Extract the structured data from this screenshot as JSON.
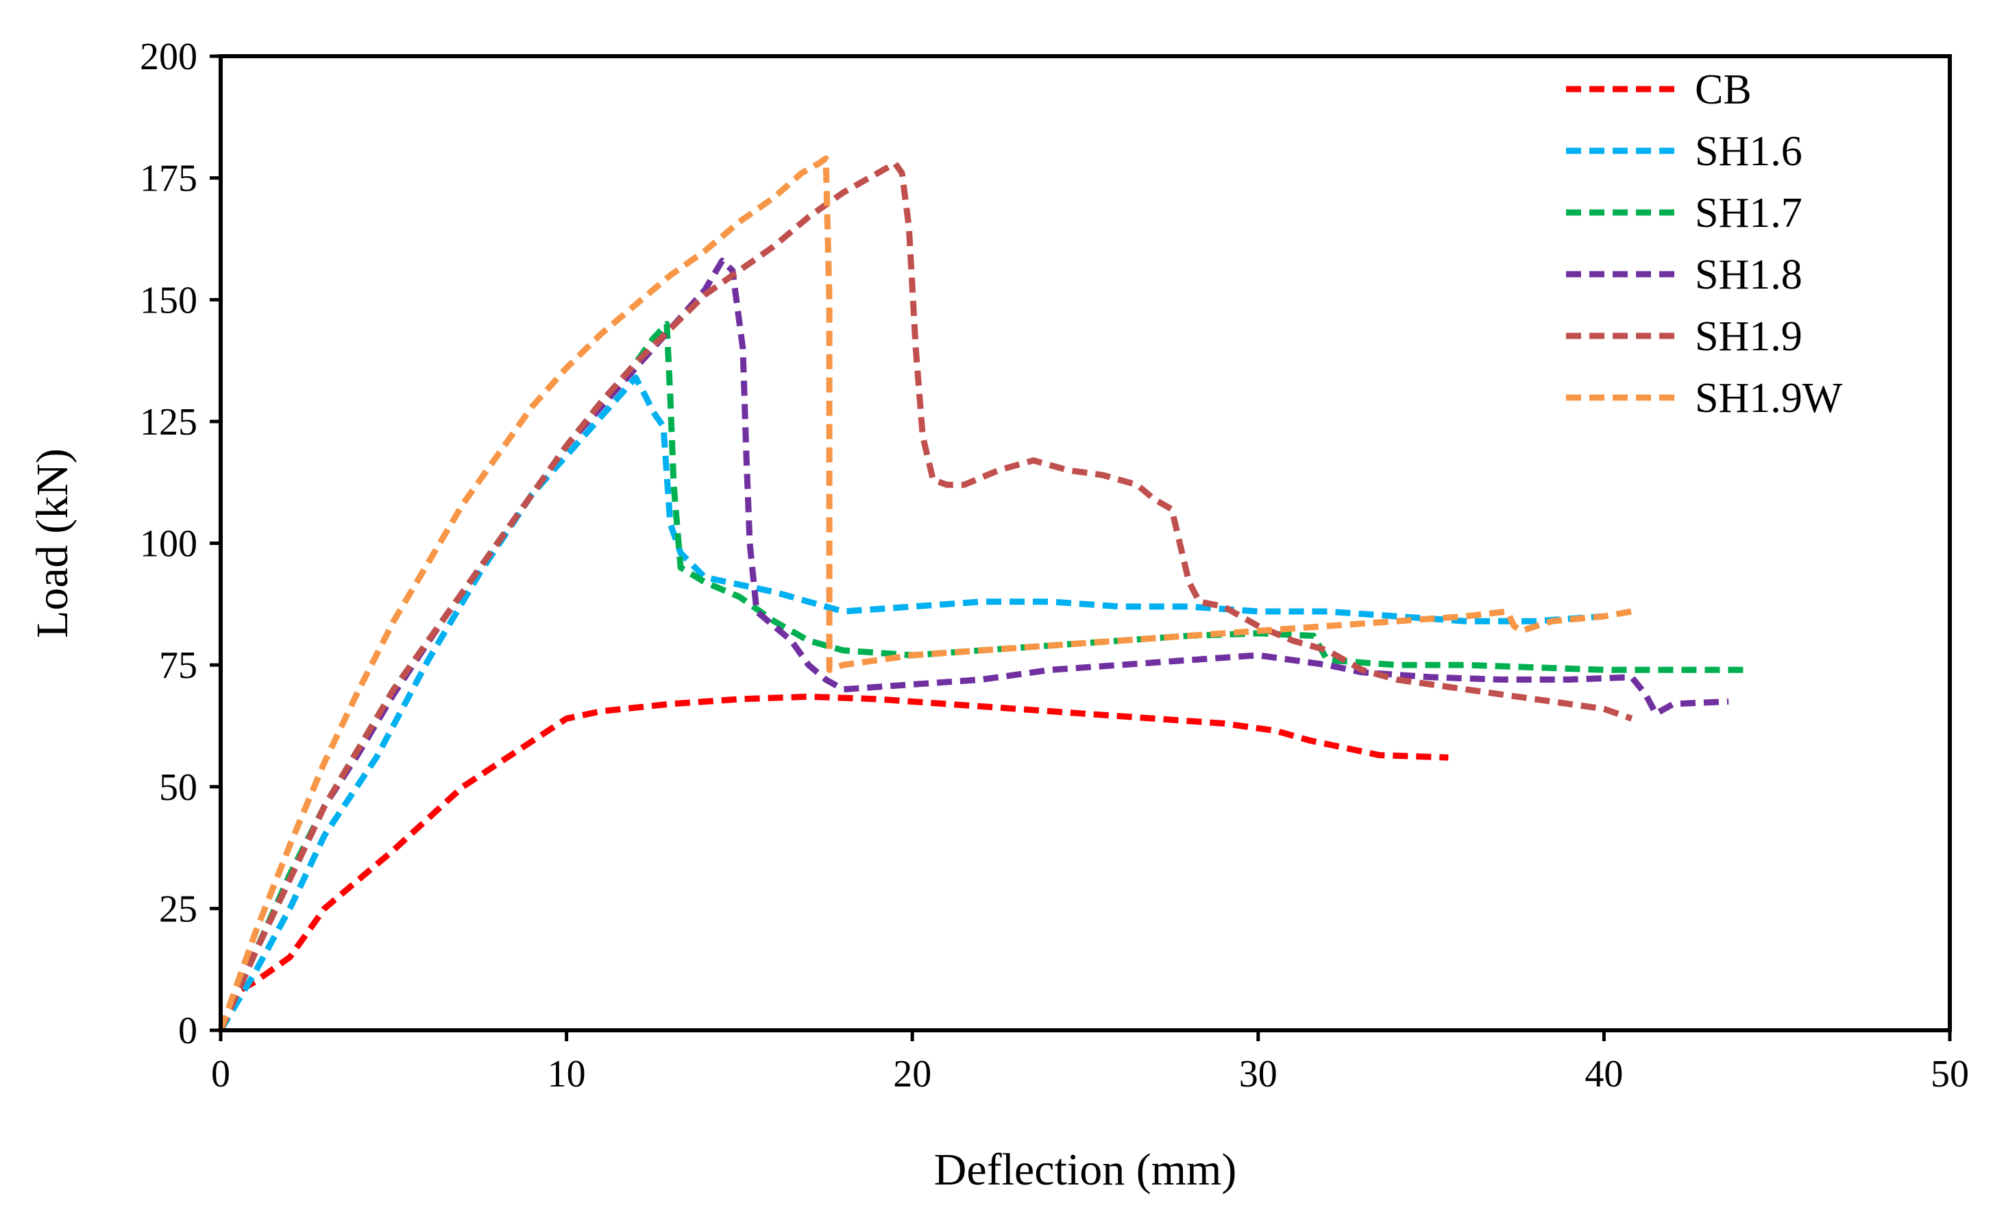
{
  "chart_data": {
    "type": "line",
    "title": "",
    "xlabel": "Deflection (mm)",
    "ylabel": "Load (kN)",
    "xlim": [
      0,
      50
    ],
    "ylim": [
      0,
      200
    ],
    "xticks": [
      "0",
      "10",
      "20",
      "30",
      "40",
      "50"
    ],
    "yticks": [
      "0",
      "25",
      "50",
      "75",
      "100",
      "125",
      "150",
      "175",
      "200"
    ],
    "grid": false,
    "legend_position": "top-right",
    "line_style": "dashed",
    "series": [
      {
        "name": "CB",
        "color": "#ff0000",
        "points": [
          [
            0,
            0
          ],
          [
            0.5,
            8
          ],
          [
            1,
            10
          ],
          [
            2,
            15
          ],
          [
            3,
            25
          ],
          [
            5,
            37
          ],
          [
            7,
            50
          ],
          [
            8.5,
            57
          ],
          [
            10,
            64
          ],
          [
            11,
            65.5
          ],
          [
            13,
            67
          ],
          [
            15,
            68
          ],
          [
            17,
            68.5
          ],
          [
            19,
            68
          ],
          [
            21,
            67
          ],
          [
            23,
            66
          ],
          [
            25,
            65
          ],
          [
            27,
            64
          ],
          [
            29,
            63
          ],
          [
            30.5,
            61.5
          ],
          [
            31.5,
            59.5
          ],
          [
            32.5,
            58
          ],
          [
            33.5,
            56.5
          ],
          [
            35.5,
            56
          ]
        ]
      },
      {
        "name": "SH1.6",
        "color": "#00b0f0",
        "points": [
          [
            0,
            0
          ],
          [
            1,
            12
          ],
          [
            2,
            25
          ],
          [
            3,
            40
          ],
          [
            4.5,
            56
          ],
          [
            6,
            76
          ],
          [
            7.5,
            94
          ],
          [
            9,
            110
          ],
          [
            10,
            118
          ],
          [
            11,
            126
          ],
          [
            11.5,
            130
          ],
          [
            12,
            134
          ],
          [
            12.3,
            130
          ],
          [
            12.5,
            127
          ],
          [
            12.8,
            124
          ],
          [
            13,
            104
          ],
          [
            13.3,
            98
          ],
          [
            14,
            93
          ],
          [
            16,
            90
          ],
          [
            17,
            88
          ],
          [
            18,
            86
          ],
          [
            20,
            87
          ],
          [
            22,
            88
          ],
          [
            24,
            88
          ],
          [
            26,
            87
          ],
          [
            28,
            87
          ],
          [
            30,
            86
          ],
          [
            32,
            86
          ],
          [
            34,
            85
          ],
          [
            36,
            84
          ],
          [
            38,
            84
          ],
          [
            40,
            85
          ]
        ]
      },
      {
        "name": "SH1.7",
        "color": "#00b050",
        "points": [
          [
            0,
            0
          ],
          [
            1,
            16
          ],
          [
            2,
            32
          ],
          [
            3,
            46
          ],
          [
            4,
            58
          ],
          [
            5,
            70
          ],
          [
            6.5,
            85
          ],
          [
            8,
            100
          ],
          [
            9,
            110
          ],
          [
            10,
            120
          ],
          [
            11,
            129
          ],
          [
            12,
            137
          ],
          [
            12.5,
            142
          ],
          [
            12.9,
            145
          ],
          [
            13,
            130
          ],
          [
            13.1,
            112
          ],
          [
            13.3,
            95
          ],
          [
            14,
            92
          ],
          [
            15,
            89
          ],
          [
            16,
            84
          ],
          [
            17,
            80
          ],
          [
            18,
            78
          ],
          [
            20,
            77
          ],
          [
            22,
            78
          ],
          [
            24,
            79
          ],
          [
            26,
            80
          ],
          [
            28,
            81
          ],
          [
            30,
            81.5
          ],
          [
            31.6,
            81
          ],
          [
            32,
            76
          ],
          [
            34,
            75
          ],
          [
            36,
            75
          ],
          [
            38,
            74.5
          ],
          [
            40,
            74
          ],
          [
            44.2,
            74
          ]
        ]
      },
      {
        "name": "SH1.8",
        "color": "#7030a0",
        "points": [
          [
            0,
            0
          ],
          [
            1,
            16
          ],
          [
            2,
            31
          ],
          [
            3,
            46
          ],
          [
            4,
            57
          ],
          [
            5,
            69
          ],
          [
            6.5,
            85
          ],
          [
            8,
            100
          ],
          [
            10,
            120
          ],
          [
            11,
            128
          ],
          [
            12,
            136
          ],
          [
            13,
            144
          ],
          [
            14,
            152
          ],
          [
            14.5,
            158
          ],
          [
            14.8,
            156
          ],
          [
            15.1,
            140
          ],
          [
            15.2,
            118
          ],
          [
            15.3,
            100
          ],
          [
            15.5,
            86
          ],
          [
            16,
            83
          ],
          [
            16.5,
            80
          ],
          [
            17,
            75
          ],
          [
            17.5,
            72
          ],
          [
            18,
            70
          ],
          [
            20,
            71
          ],
          [
            22,
            72
          ],
          [
            24,
            74
          ],
          [
            26,
            75
          ],
          [
            28,
            76
          ],
          [
            30,
            77
          ],
          [
            32,
            75
          ],
          [
            33,
            73.5
          ],
          [
            35,
            72.5
          ],
          [
            37,
            72
          ],
          [
            39,
            72
          ],
          [
            40.8,
            72.5
          ],
          [
            41.2,
            69
          ],
          [
            41.5,
            65
          ],
          [
            42,
            67
          ],
          [
            43.6,
            67.5
          ]
        ]
      },
      {
        "name": "SH1.9",
        "color": "#c0504d",
        "points": [
          [
            0,
            0
          ],
          [
            1,
            16
          ],
          [
            2,
            31
          ],
          [
            3,
            46
          ],
          [
            4,
            58
          ],
          [
            5,
            70
          ],
          [
            6.5,
            85
          ],
          [
            8,
            100
          ],
          [
            10,
            120
          ],
          [
            11,
            129
          ],
          [
            12,
            137
          ],
          [
            13,
            144
          ],
          [
            14,
            151
          ],
          [
            15,
            156
          ],
          [
            16,
            161
          ],
          [
            17,
            167
          ],
          [
            18,
            172
          ],
          [
            19,
            176
          ],
          [
            19.5,
            178
          ],
          [
            19.7,
            176
          ],
          [
            19.9,
            165
          ],
          [
            20.1,
            140
          ],
          [
            20.3,
            122
          ],
          [
            20.6,
            113
          ],
          [
            21,
            112
          ],
          [
            21.5,
            112
          ],
          [
            22.5,
            115
          ],
          [
            23.5,
            117
          ],
          [
            24.5,
            115
          ],
          [
            25.5,
            114
          ],
          [
            26.5,
            112
          ],
          [
            27,
            109
          ],
          [
            27.5,
            107
          ],
          [
            27.8,
            98
          ],
          [
            28,
            92
          ],
          [
            28.3,
            88
          ],
          [
            29,
            87
          ],
          [
            30,
            83
          ],
          [
            31,
            80
          ],
          [
            32,
            78
          ],
          [
            33,
            74
          ],
          [
            34,
            72
          ],
          [
            35,
            71
          ],
          [
            36,
            70
          ],
          [
            37,
            69
          ],
          [
            38,
            68
          ],
          [
            39,
            67
          ],
          [
            40,
            66
          ],
          [
            40.8,
            64
          ]
        ]
      },
      {
        "name": "SH1.9W",
        "color": "#f79646",
        "points": [
          [
            0,
            0
          ],
          [
            1,
            20
          ],
          [
            2,
            38
          ],
          [
            3,
            55
          ],
          [
            4,
            70
          ],
          [
            5,
            84
          ],
          [
            6,
            96
          ],
          [
            7,
            108
          ],
          [
            8,
            118
          ],
          [
            9,
            128
          ],
          [
            10,
            136
          ],
          [
            11,
            143
          ],
          [
            12,
            149
          ],
          [
            13,
            155
          ],
          [
            14,
            160
          ],
          [
            15,
            166
          ],
          [
            16,
            171
          ],
          [
            16.8,
            176
          ],
          [
            17.3,
            178
          ],
          [
            17.5,
            179
          ],
          [
            17.6,
            150
          ],
          [
            17.6,
            115
          ],
          [
            17.6,
            74
          ],
          [
            18,
            75
          ],
          [
            19,
            76
          ],
          [
            20,
            77
          ],
          [
            22,
            78
          ],
          [
            24,
            79
          ],
          [
            26,
            80
          ],
          [
            28,
            81
          ],
          [
            30,
            82
          ],
          [
            32,
            83
          ],
          [
            34,
            84
          ],
          [
            36,
            85
          ],
          [
            37.2,
            86
          ],
          [
            37.4,
            83
          ],
          [
            37.6,
            82
          ],
          [
            38.5,
            84
          ],
          [
            40,
            85
          ],
          [
            40.8,
            86
          ]
        ]
      }
    ]
  }
}
